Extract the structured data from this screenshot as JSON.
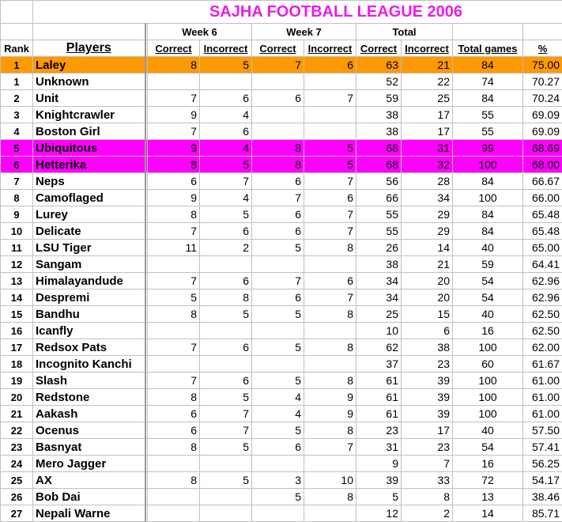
{
  "title": "SAJHA FOOTBALL LEAGUE 2006",
  "groups": {
    "week6": "Week 6",
    "week7": "Week 7",
    "total": "Total"
  },
  "headers": {
    "rank": "Rank",
    "players": "Players",
    "correct": "Correct",
    "incorrect": "Incorrect",
    "total_games": "Total games",
    "pct": "%"
  },
  "colors": {
    "highlight_orange": "#FF9900",
    "highlight_magenta": "#FF00FF",
    "title": "#E81EE8"
  },
  "rows": [
    {
      "rank": "1",
      "name": "Laley",
      "w6c": "8",
      "w6i": "5",
      "w7c": "7",
      "w7i": "6",
      "tc": "63",
      "ti": "21",
      "tg": "84",
      "pct": "75.00",
      "hl": "orange"
    },
    {
      "rank": "1",
      "name": "Unknown",
      "w6c": "",
      "w6i": "",
      "w7c": "",
      "w7i": "",
      "tc": "52",
      "ti": "22",
      "tg": "74",
      "pct": "70.27"
    },
    {
      "rank": "2",
      "name": "Unit",
      "w6c": "7",
      "w6i": "6",
      "w7c": "6",
      "w7i": "7",
      "tc": "59",
      "ti": "25",
      "tg": "84",
      "pct": "70.24"
    },
    {
      "rank": "3",
      "name": "Knightcrawler",
      "w6c": "9",
      "w6i": "4",
      "w7c": "",
      "w7i": "",
      "tc": "38",
      "ti": "17",
      "tg": "55",
      "pct": "69.09"
    },
    {
      "rank": "4",
      "name": "Boston Girl",
      "w6c": "7",
      "w6i": "6",
      "w7c": "",
      "w7i": "",
      "tc": "38",
      "ti": "17",
      "tg": "55",
      "pct": "69.09"
    },
    {
      "rank": "5",
      "name": "Ubiquitous",
      "w6c": "9",
      "w6i": "4",
      "w7c": "8",
      "w7i": "5",
      "tc": "68",
      "ti": "31",
      "tg": "99",
      "pct": "68.69",
      "hl": "magenta"
    },
    {
      "rank": "6",
      "name": "Hetterika",
      "w6c": "8",
      "w6i": "5",
      "w7c": "8",
      "w7i": "5",
      "tc": "68",
      "ti": "32",
      "tg": "100",
      "pct": "68.00",
      "hl": "magenta"
    },
    {
      "rank": "7",
      "name": "Neps",
      "w6c": "6",
      "w6i": "7",
      "w7c": "6",
      "w7i": "7",
      "tc": "56",
      "ti": "28",
      "tg": "84",
      "pct": "66.67"
    },
    {
      "rank": "8",
      "name": "Camoflaged",
      "w6c": "9",
      "w6i": "4",
      "w7c": "7",
      "w7i": "6",
      "tc": "66",
      "ti": "34",
      "tg": "100",
      "pct": "66.00"
    },
    {
      "rank": "9",
      "name": "Lurey",
      "w6c": "8",
      "w6i": "5",
      "w7c": "6",
      "w7i": "7",
      "tc": "55",
      "ti": "29",
      "tg": "84",
      "pct": "65.48"
    },
    {
      "rank": "10",
      "name": "Delicate",
      "w6c": "7",
      "w6i": "6",
      "w7c": "6",
      "w7i": "7",
      "tc": "55",
      "ti": "29",
      "tg": "84",
      "pct": "65.48"
    },
    {
      "rank": "11",
      "name": "LSU Tiger",
      "w6c": "11",
      "w6i": "2",
      "w7c": "5",
      "w7i": "8",
      "tc": "26",
      "ti": "14",
      "tg": "40",
      "pct": "65.00"
    },
    {
      "rank": "12",
      "name": "Sangam",
      "w6c": "",
      "w6i": "",
      "w7c": "",
      "w7i": "",
      "tc": "38",
      "ti": "21",
      "tg": "59",
      "pct": "64.41"
    },
    {
      "rank": "13",
      "name": "Himalayandude",
      "w6c": "7",
      "w6i": "6",
      "w7c": "7",
      "w7i": "6",
      "tc": "34",
      "ti": "20",
      "tg": "54",
      "pct": "62.96"
    },
    {
      "rank": "14",
      "name": "Despremi",
      "w6c": "5",
      "w6i": "8",
      "w7c": "6",
      "w7i": "7",
      "tc": "34",
      "ti": "20",
      "tg": "54",
      "pct": "62.96"
    },
    {
      "rank": "15",
      "name": "Bandhu",
      "w6c": "8",
      "w6i": "5",
      "w7c": "5",
      "w7i": "8",
      "tc": "25",
      "ti": "15",
      "tg": "40",
      "pct": "62.50"
    },
    {
      "rank": "16",
      "name": "Icanfly",
      "w6c": "",
      "w6i": "",
      "w7c": "",
      "w7i": "",
      "tc": "10",
      "ti": "6",
      "tg": "16",
      "pct": "62.50"
    },
    {
      "rank": "17",
      "name": "Redsox Pats",
      "w6c": "7",
      "w6i": "6",
      "w7c": "5",
      "w7i": "8",
      "tc": "62",
      "ti": "38",
      "tg": "100",
      "pct": "62.00"
    },
    {
      "rank": "18",
      "name": "Incognito Kanchi",
      "w6c": "",
      "w6i": "",
      "w7c": "",
      "w7i": "",
      "tc": "37",
      "ti": "23",
      "tg": "60",
      "pct": "61.67"
    },
    {
      "rank": "19",
      "name": "Slash",
      "w6c": "7",
      "w6i": "6",
      "w7c": "5",
      "w7i": "8",
      "tc": "61",
      "ti": "39",
      "tg": "100",
      "pct": "61.00"
    },
    {
      "rank": "20",
      "name": "Redstone",
      "w6c": "8",
      "w6i": "5",
      "w7c": "4",
      "w7i": "9",
      "tc": "61",
      "ti": "39",
      "tg": "100",
      "pct": "61.00"
    },
    {
      "rank": "21",
      "name": "Aakash",
      "w6c": "6",
      "w6i": "7",
      "w7c": "4",
      "w7i": "9",
      "tc": "61",
      "ti": "39",
      "tg": "100",
      "pct": "61.00"
    },
    {
      "rank": "22",
      "name": "Ocenus",
      "w6c": "6",
      "w6i": "7",
      "w7c": "5",
      "w7i": "8",
      "tc": "23",
      "ti": "17",
      "tg": "40",
      "pct": "57.50"
    },
    {
      "rank": "23",
      "name": "Basnyat",
      "w6c": "8",
      "w6i": "5",
      "w7c": "6",
      "w7i": "7",
      "tc": "31",
      "ti": "23",
      "tg": "54",
      "pct": "57.41"
    },
    {
      "rank": "24",
      "name": "Mero Jagger",
      "w6c": "",
      "w6i": "",
      "w7c": "",
      "w7i": "",
      "tc": "9",
      "ti": "7",
      "tg": "16",
      "pct": "56.25"
    },
    {
      "rank": "25",
      "name": "AX",
      "w6c": "8",
      "w6i": "5",
      "w7c": "3",
      "w7i": "10",
      "tc": "39",
      "ti": "33",
      "tg": "72",
      "pct": "54.17"
    },
    {
      "rank": "26",
      "name": "Bob Dai",
      "w6c": "",
      "w6i": "",
      "w7c": "5",
      "w7i": "8",
      "tc": "5",
      "ti": "8",
      "tg": "13",
      "pct": "38.46"
    },
    {
      "rank": "27",
      "name": "Nepali Warne",
      "w6c": "",
      "w6i": "",
      "w7c": "",
      "w7i": "",
      "tc": "12",
      "ti": "2",
      "tg": "14",
      "pct": "85.71"
    }
  ]
}
